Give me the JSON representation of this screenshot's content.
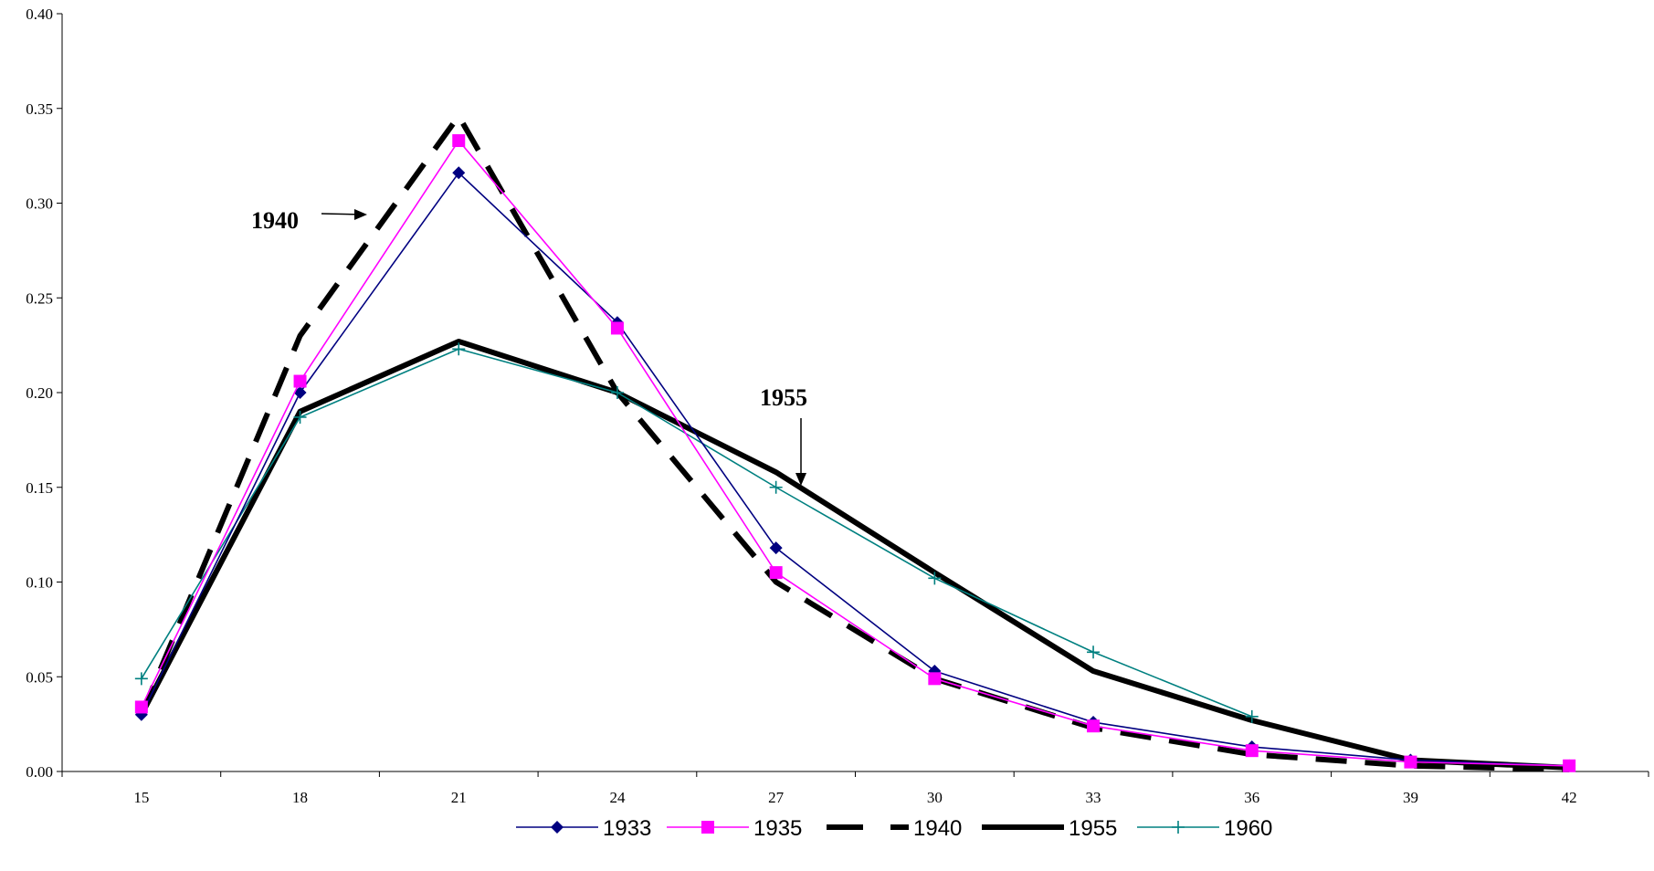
{
  "chart_data": {
    "type": "line",
    "title": "",
    "xlabel": "",
    "ylabel": "",
    "x": [
      15,
      18,
      21,
      24,
      27,
      30,
      33,
      36,
      39,
      42
    ],
    "xlim": [
      13.5,
      43.5
    ],
    "ylim": [
      0,
      0.4
    ],
    "y_ticks": [
      "0.00",
      "0.05",
      "0.10",
      "0.15",
      "0.20",
      "0.25",
      "0.30",
      "0.35",
      "0.40"
    ],
    "x_ticks": [
      "15",
      "18",
      "21",
      "24",
      "27",
      "30",
      "33",
      "36",
      "39",
      "42"
    ],
    "grid": false,
    "legend_position": "bottom",
    "series": [
      {
        "name": "1933",
        "color": "#000080",
        "style": "solid-thin",
        "marker": "diamond",
        "values": [
          0.03,
          0.2,
          0.316,
          0.237,
          0.118,
          0.053,
          0.026,
          0.013,
          0.006,
          0.003
        ]
      },
      {
        "name": "1935",
        "color": "#ff00ff",
        "style": "solid-thin",
        "marker": "square",
        "values": [
          0.034,
          0.206,
          0.333,
          0.234,
          0.105,
          0.049,
          0.024,
          0.011,
          0.005,
          0.003
        ]
      },
      {
        "name": "1940",
        "color": "#000000",
        "style": "dashed-thick",
        "marker": "none",
        "values": [
          0.03,
          0.23,
          0.346,
          0.2,
          0.1,
          0.049,
          0.023,
          0.009,
          0.003,
          0.001
        ]
      },
      {
        "name": "1955",
        "color": "#000000",
        "style": "solid-thick",
        "marker": "none",
        "values": [
          0.03,
          0.19,
          0.227,
          0.2,
          0.158,
          0.105,
          0.053,
          0.027,
          0.006,
          0.002
        ]
      },
      {
        "name": "1960",
        "color": "#008080",
        "style": "solid-thin",
        "marker": "plus",
        "values": [
          0.049,
          0.187,
          0.223,
          0.2,
          0.15,
          0.102,
          0.063,
          0.029,
          null,
          null
        ]
      }
    ],
    "annotations": [
      {
        "text": "1940",
        "target_series": "1940",
        "arrow": "right"
      },
      {
        "text": "1955",
        "target_series": "1955",
        "arrow": "down"
      }
    ]
  }
}
